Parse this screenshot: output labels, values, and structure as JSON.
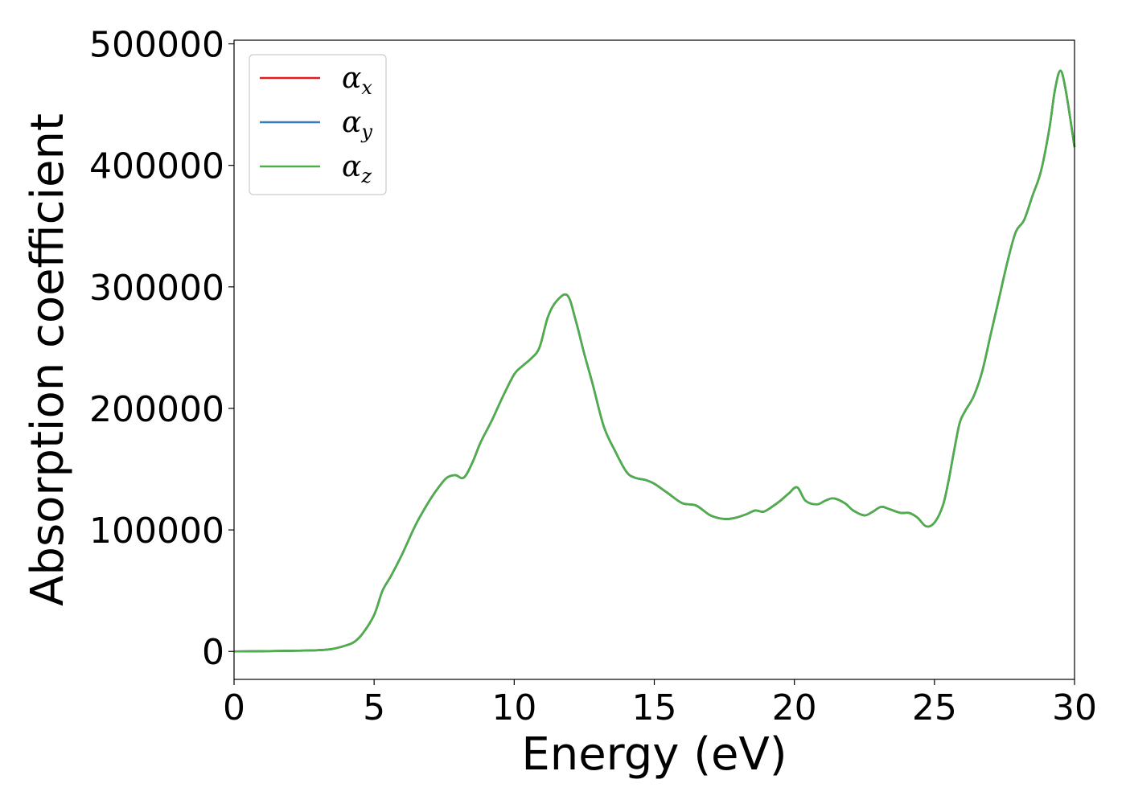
{
  "chart_data": {
    "type": "line",
    "title": "",
    "xlabel": "Energy (eV)",
    "ylabel": "Absorption coefficient",
    "xlim": [
      0,
      30
    ],
    "ylim": [
      -23000,
      503000
    ],
    "xticks": [
      0,
      5,
      10,
      15,
      20,
      25,
      30
    ],
    "yticks": [
      0,
      100000,
      200000,
      300000,
      400000,
      500000
    ],
    "xtick_labels": [
      "0",
      "5",
      "10",
      "15",
      "20",
      "25",
      "30"
    ],
    "ytick_labels": [
      "0",
      "100000",
      "200000",
      "300000",
      "400000",
      "500000"
    ],
    "grid": false,
    "legend_position": "top-left",
    "x": [
      0,
      1,
      2,
      3,
      3.5,
      4,
      4.3,
      4.6,
      5,
      5.3,
      5.6,
      6,
      6.5,
      7,
      7.3,
      7.6,
      7.9,
      8.2,
      8.5,
      8.8,
      9.2,
      9.6,
      10,
      10.3,
      10.6,
      10.9,
      11.2,
      11.5,
      11.9,
      12.2,
      12.5,
      12.8,
      13.2,
      13.6,
      14,
      14.3,
      14.7,
      15,
      15.5,
      16,
      16.5,
      17,
      17.5,
      17.9,
      18.3,
      18.6,
      18.9,
      19.2,
      19.5,
      19.8,
      20.1,
      20.4,
      20.8,
      21.1,
      21.4,
      21.8,
      22.1,
      22.5,
      22.8,
      23.1,
      23.4,
      23.8,
      24.1,
      24.4,
      24.7,
      25,
      25.3,
      25.5,
      25.7,
      25.9,
      26.1,
      26.4,
      26.7,
      27,
      27.3,
      27.6,
      27.9,
      28.2,
      28.5,
      28.8,
      29.1,
      29.3,
      29.5,
      29.7,
      30
    ],
    "series": [
      {
        "name": "α_x",
        "color": "#e41a1c",
        "values": [
          0,
          200,
          500,
          1000,
          2000,
          5000,
          8000,
          15000,
          30000,
          50000,
          62000,
          80000,
          105000,
          125000,
          135000,
          143000,
          145000,
          143000,
          155000,
          172000,
          190000,
          210000,
          228000,
          235000,
          241000,
          250000,
          275000,
          288000,
          293000,
          272000,
          245000,
          220000,
          185000,
          165000,
          148000,
          143000,
          141000,
          138000,
          130000,
          122000,
          120000,
          112000,
          109000,
          110000,
          113000,
          116000,
          115000,
          119000,
          124000,
          130000,
          135000,
          124000,
          121000,
          124000,
          126000,
          122000,
          116000,
          112000,
          115000,
          119000,
          117000,
          114000,
          114000,
          110000,
          103000,
          106000,
          120000,
          140000,
          165000,
          188000,
          198000,
          210000,
          230000,
          260000,
          290000,
          320000,
          345000,
          355000,
          375000,
          395000,
          430000,
          462000,
          478000,
          460000,
          415000
        ]
      },
      {
        "name": "α_y",
        "color": "#377eb8",
        "values": [
          0,
          200,
          500,
          1000,
          2000,
          5000,
          8000,
          15000,
          30000,
          50000,
          62000,
          80000,
          105000,
          125000,
          135000,
          143000,
          145000,
          143000,
          155000,
          172000,
          190000,
          210000,
          228000,
          235000,
          241000,
          250000,
          275000,
          288000,
          293000,
          272000,
          245000,
          220000,
          185000,
          165000,
          148000,
          143000,
          141000,
          138000,
          130000,
          122000,
          120000,
          112000,
          109000,
          110000,
          113000,
          116000,
          115000,
          119000,
          124000,
          130000,
          135000,
          124000,
          121000,
          124000,
          126000,
          122000,
          116000,
          112000,
          115000,
          119000,
          117000,
          114000,
          114000,
          110000,
          103000,
          106000,
          120000,
          140000,
          165000,
          188000,
          198000,
          210000,
          230000,
          260000,
          290000,
          320000,
          345000,
          355000,
          375000,
          395000,
          430000,
          462000,
          478000,
          460000,
          415000
        ]
      },
      {
        "name": "α_z",
        "color": "#4daf4a",
        "values": [
          0,
          200,
          500,
          1000,
          2000,
          5000,
          8000,
          15000,
          30000,
          50000,
          62000,
          80000,
          105000,
          125000,
          135000,
          143000,
          145000,
          143000,
          155000,
          172000,
          190000,
          210000,
          228000,
          235000,
          241000,
          250000,
          275000,
          288000,
          293000,
          272000,
          245000,
          220000,
          185000,
          165000,
          148000,
          143000,
          141000,
          138000,
          130000,
          122000,
          120000,
          112000,
          109000,
          110000,
          113000,
          116000,
          115000,
          119000,
          124000,
          130000,
          135000,
          124000,
          121000,
          124000,
          126000,
          122000,
          116000,
          112000,
          115000,
          119000,
          117000,
          114000,
          114000,
          110000,
          103000,
          106000,
          120000,
          140000,
          165000,
          188000,
          198000,
          210000,
          230000,
          260000,
          290000,
          320000,
          345000,
          355000,
          375000,
          395000,
          430000,
          462000,
          478000,
          460000,
          415000
        ]
      }
    ],
    "legend": [
      {
        "symbol": "α",
        "sub": "x"
      },
      {
        "symbol": "α",
        "sub": "y"
      },
      {
        "symbol": "α",
        "sub": "z"
      }
    ]
  }
}
